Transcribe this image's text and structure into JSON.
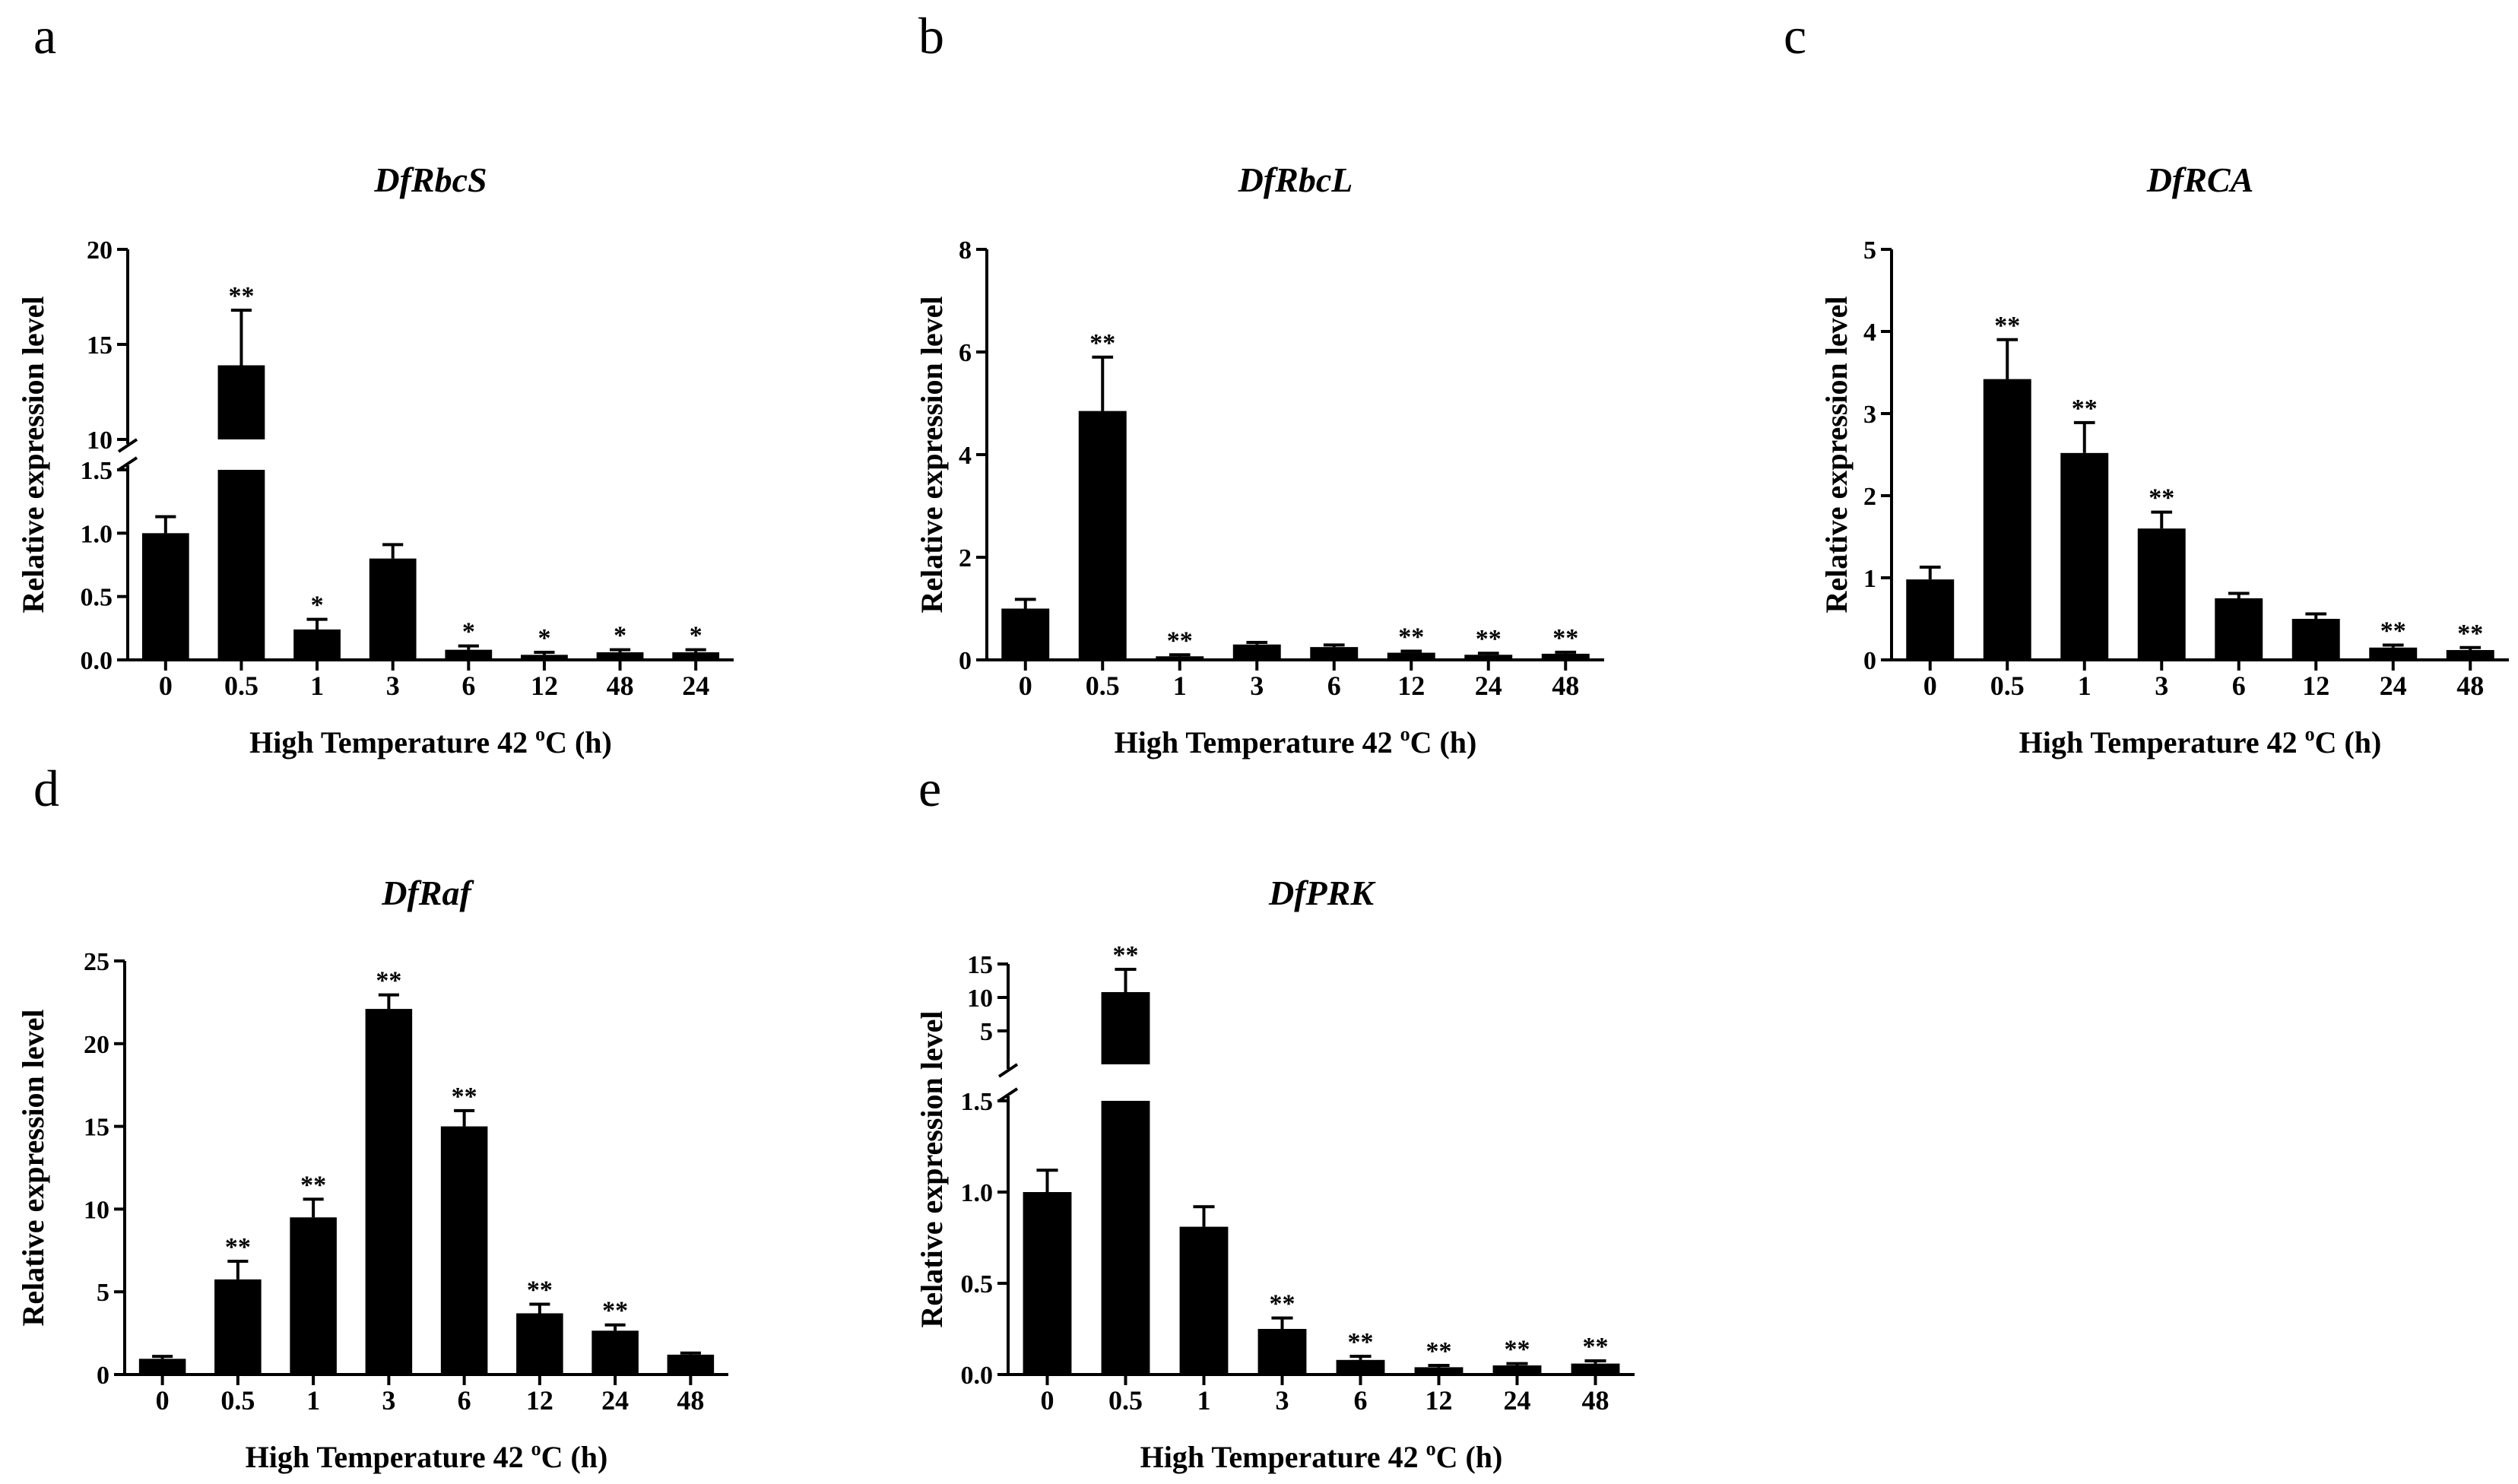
{
  "figure": {
    "xlabel_prefix": "High Temperature 42 ",
    "xlabel_sup": "o",
    "xlabel_suffix": "C (h)"
  },
  "chart_data": [
    {
      "panel": "a",
      "type": "bar",
      "title": "DfRbcS",
      "ylabel": "Relative expression level",
      "xlabel": "High Temperature 42 oC (h)",
      "categories": [
        "0",
        "0.5",
        "1",
        "3",
        "6",
        "12",
        "48",
        "24"
      ],
      "values": [
        1.0,
        13.9,
        0.24,
        0.8,
        0.08,
        0.04,
        0.06,
        0.06
      ],
      "errors": [
        0.13,
        2.9,
        0.08,
        0.11,
        0.03,
        0.02,
        0.02,
        0.02
      ],
      "significance": [
        "",
        "**",
        "*",
        "",
        "*",
        "*",
        "*",
        "*"
      ],
      "broken_axis": true,
      "lower_ylim": [
        0,
        1.5
      ],
      "lower_yticks": [
        "0.0",
        "0.5",
        "1.0",
        "1.5"
      ],
      "upper_ylim": [
        10,
        20
      ],
      "upper_yticks": [
        "10",
        "15",
        "20"
      ]
    },
    {
      "panel": "b",
      "type": "bar",
      "title": "DfRbcL",
      "ylabel": "Relative expression level",
      "xlabel": "High Temperature 42 oC (h)",
      "categories": [
        "0",
        "0.5",
        "1",
        "3",
        "6",
        "12",
        "24",
        "48"
      ],
      "values": [
        1.0,
        4.85,
        0.07,
        0.3,
        0.25,
        0.14,
        0.1,
        0.12
      ],
      "errors": [
        0.18,
        1.05,
        0.03,
        0.04,
        0.04,
        0.03,
        0.03,
        0.03
      ],
      "significance": [
        "",
        "**",
        "**",
        "",
        "",
        "**",
        "**",
        "**"
      ],
      "broken_axis": false,
      "ylim": [
        0,
        8
      ],
      "yticks": [
        "0",
        "2",
        "4",
        "6",
        "8"
      ]
    },
    {
      "panel": "c",
      "type": "bar",
      "title": "DfRCA",
      "ylabel": "Relative expression level",
      "xlabel": "High Temperature 42 oC (h)",
      "categories": [
        "0",
        "0.5",
        "1",
        "3",
        "6",
        "12",
        "24",
        "48"
      ],
      "values": [
        0.98,
        3.42,
        2.52,
        1.6,
        0.75,
        0.5,
        0.15,
        0.12
      ],
      "errors": [
        0.15,
        0.48,
        0.37,
        0.2,
        0.06,
        0.06,
        0.03,
        0.03
      ],
      "significance": [
        "",
        "**",
        "**",
        "**",
        "",
        "",
        "**",
        "**"
      ],
      "broken_axis": false,
      "ylim": [
        0,
        5
      ],
      "yticks": [
        "0",
        "1",
        "2",
        "3",
        "4",
        "5"
      ]
    },
    {
      "panel": "d",
      "type": "bar",
      "title": "DfRaf",
      "ylabel": "Relative expression level",
      "xlabel": "High Temperature 42 oC (h)",
      "categories": [
        "0",
        "0.5",
        "1",
        "3",
        "6",
        "12",
        "24",
        "48"
      ],
      "values": [
        0.95,
        5.75,
        9.5,
        22.1,
        15.0,
        3.7,
        2.65,
        1.2
      ],
      "errors": [
        0.15,
        1.1,
        1.1,
        0.85,
        0.95,
        0.55,
        0.35,
        0.1
      ],
      "significance": [
        "",
        "**",
        "**",
        "**",
        "**",
        "**",
        "**",
        ""
      ],
      "broken_axis": false,
      "ylim": [
        0,
        25
      ],
      "yticks": [
        "0",
        "5",
        "10",
        "15",
        "20",
        "25"
      ]
    },
    {
      "panel": "e",
      "type": "bar",
      "title": "DfPRK",
      "ylabel": "Relative expression level",
      "xlabel": "High Temperature 42 oC (h)",
      "categories": [
        "0",
        "0.5",
        "1",
        "3",
        "6",
        "12",
        "24",
        "48"
      ],
      "values": [
        1.0,
        10.8,
        0.81,
        0.25,
        0.08,
        0.04,
        0.05,
        0.06
      ],
      "errors": [
        0.12,
        3.4,
        0.11,
        0.06,
        0.02,
        0.01,
        0.01,
        0.015
      ],
      "significance": [
        "",
        "**",
        "",
        "**",
        "**",
        "**",
        "**",
        "**"
      ],
      "broken_axis": true,
      "lower_ylim": [
        0,
        1.5
      ],
      "lower_yticks": [
        "0.0",
        "0.5",
        "1.0",
        "1.5"
      ],
      "upper_ylim": [
        0,
        15
      ],
      "upper_yticks": [
        "5",
        "10",
        "15"
      ]
    }
  ]
}
